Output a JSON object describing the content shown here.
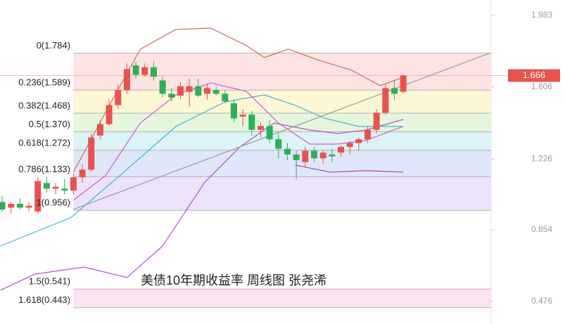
{
  "chart_data": {
    "type": "candlestick",
    "title": "美债10年期收益率 周线图 张尧浠",
    "xlim": [
      -0.24,
      54.85
    ],
    "ylim": [
      0.357,
      2.064
    ],
    "yticks": [
      1.983,
      1.606,
      1.226,
      0.854,
      0.476
    ],
    "up_color": "#e8524f",
    "down_color": "#2fae5a",
    "last_price": 1.666,
    "last_price_color": "#e8524f",
    "candles": {
      "open": [
        1.0,
        0.97,
        0.99,
        0.97,
        0.95,
        1.1,
        1.07,
        1.07,
        1.06,
        1.13,
        1.17,
        1.35,
        1.41,
        1.51,
        1.59,
        1.72,
        1.67,
        1.71,
        1.64,
        1.57,
        1.56,
        1.58,
        1.61,
        1.57,
        1.59,
        1.57,
        1.52,
        1.45,
        1.46,
        1.38,
        1.4,
        1.33,
        1.28,
        1.25,
        1.21,
        1.27,
        1.23,
        1.25,
        1.26,
        1.29,
        1.31,
        1.33,
        1.38,
        1.47,
        1.6,
        1.58
      ],
      "high": [
        1.03,
        1.0,
        1.02,
        1.0,
        1.13,
        1.13,
        1.1,
        1.12,
        1.15,
        1.2,
        1.36,
        1.43,
        1.54,
        1.62,
        1.73,
        1.74,
        1.73,
        1.74,
        1.66,
        1.6,
        1.63,
        1.65,
        1.65,
        1.62,
        1.61,
        1.59,
        1.54,
        1.49,
        1.48,
        1.42,
        1.43,
        1.36,
        1.31,
        1.27,
        1.29,
        1.29,
        1.27,
        1.28,
        1.3,
        1.32,
        1.34,
        1.4,
        1.49,
        1.62,
        1.64,
        1.67
      ],
      "low": [
        0.95,
        0.94,
        0.96,
        0.95,
        0.94,
        1.05,
        1.04,
        1.04,
        1.04,
        1.1,
        1.16,
        1.33,
        1.4,
        1.49,
        1.57,
        1.65,
        1.66,
        1.64,
        1.55,
        1.53,
        1.54,
        1.5,
        1.55,
        1.54,
        1.56,
        1.52,
        1.42,
        1.4,
        1.35,
        1.34,
        1.31,
        1.23,
        1.22,
        1.12,
        1.18,
        1.21,
        1.2,
        1.21,
        1.24,
        1.25,
        1.27,
        1.31,
        1.36,
        1.46,
        1.54,
        1.57
      ],
      "close": [
        0.96,
        0.99,
        0.97,
        0.98,
        1.11,
        1.07,
        1.08,
        1.06,
        1.13,
        1.17,
        1.34,
        1.41,
        1.51,
        1.59,
        1.7,
        1.67,
        1.71,
        1.66,
        1.57,
        1.55,
        1.61,
        1.61,
        1.56,
        1.6,
        1.57,
        1.53,
        1.44,
        1.46,
        1.38,
        1.4,
        1.33,
        1.28,
        1.25,
        1.22,
        1.27,
        1.23,
        1.26,
        1.24,
        1.29,
        1.31,
        1.33,
        1.38,
        1.47,
        1.6,
        1.57,
        1.666
      ]
    },
    "series": [
      {
        "color": "#c8705a",
        "x": [
          8,
          11.6,
          15.5,
          19.5,
          23.4,
          27.4,
          29.4,
          32.1,
          35.3,
          39.2,
          42.4,
          45
        ],
        "values": [
          1.157,
          1.472,
          1.805,
          1.909,
          1.916,
          1.824,
          1.761,
          1.805,
          1.75,
          1.694,
          1.613,
          1.657
        ]
      },
      {
        "color": "#3bb3d6",
        "x": [
          -0.2,
          7.7,
          13.2,
          19.5,
          25,
          29.4,
          32.9,
          36.1,
          40,
          42.4,
          44.9
        ],
        "values": [
          0.768,
          0.917,
          1.139,
          1.398,
          1.527,
          1.564,
          1.509,
          1.442,
          1.398,
          1.398,
          1.398
        ]
      },
      {
        "color": "#b14fd6",
        "x": [
          -0.2,
          3.7,
          9.2,
          14,
          18,
          22.7,
          26.6,
          30.5,
          34.5,
          37.6,
          40.8,
          45
        ],
        "values": [
          0.535,
          0.62,
          0.657,
          0.602,
          0.768,
          1.102,
          1.287,
          1.416,
          1.379,
          1.361,
          1.379,
          1.435
        ]
      },
      {
        "color": "#d455d4",
        "x": [
          8,
          11.6,
          15.5,
          19.5,
          23.4,
          27.4,
          31,
          34.5,
          37.6,
          40.8,
          45
        ],
        "values": [
          1.009,
          1.139,
          1.416,
          1.564,
          1.627,
          1.583,
          1.416,
          1.305,
          1.305,
          1.324,
          1.398
        ]
      },
      {
        "color": "#b040b0",
        "x": [
          32.9,
          36.8,
          40.8,
          45
        ],
        "values": [
          1.194,
          1.157,
          1.165,
          1.157
        ]
      },
      {
        "color": "#999999",
        "x": [
          8,
          54.85
        ],
        "values": [
          0.961,
          1.787
        ]
      }
    ],
    "fib": {
      "x": [
        8,
        54.85
      ],
      "levels": [
        {
          "label": "0(1.784)",
          "value": 1.784,
          "band_color": "#fde3e3"
        },
        {
          "label": "0.236(1.589)",
          "value": 1.589,
          "band_color": "#fdf7d6"
        },
        {
          "label": "0.382(1.468)",
          "value": 1.468,
          "band_color": "#e4f7dc"
        },
        {
          "label": "0.5(1.370)",
          "value": 1.37,
          "band_color": "#dcf3f7"
        },
        {
          "label": "0.618(1.272)",
          "value": 1.272,
          "band_color": "#dfe7fb"
        },
        {
          "label": "0.786(1.133)",
          "value": 1.133,
          "band_color": "#ece3fb"
        },
        {
          "label": "1(0.956)",
          "value": 0.956,
          "band_color": null
        },
        {
          "label": "1.5(0.541)",
          "value": 0.541,
          "band_color": "#fbe3f3"
        },
        {
          "label": "1.618(0.443)",
          "value": 0.443,
          "band_color": null
        }
      ]
    }
  }
}
